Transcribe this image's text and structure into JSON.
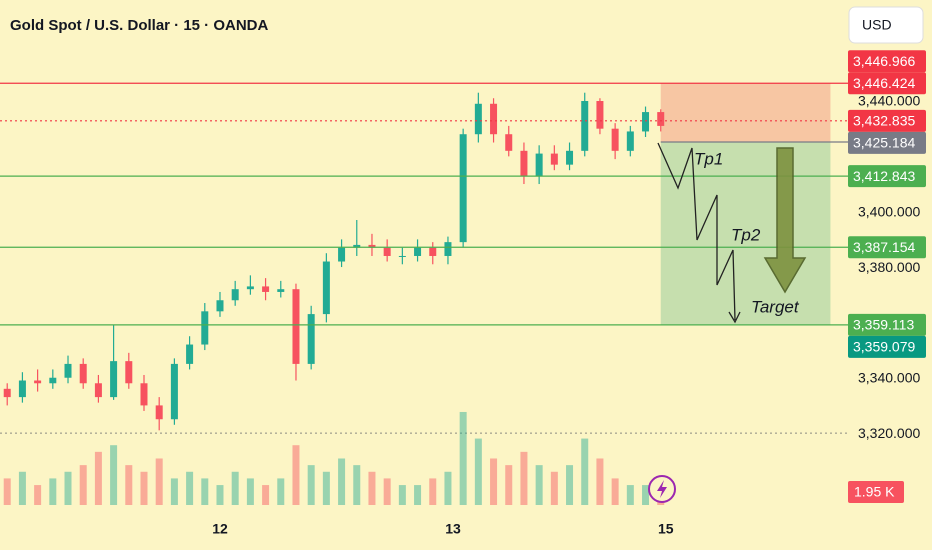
{
  "chart_data": {
    "type": "candlestick",
    "title": "Gold Spot / U.S. Dollar · 15 · OANDA",
    "currency_button": "USD",
    "x": [
      -84,
      -78,
      -72,
      -66,
      -60,
      -54,
      -48,
      -42,
      -36,
      -30,
      -24,
      -18,
      -12,
      -6,
      0,
      6,
      12,
      18,
      24,
      30,
      36,
      42,
      48,
      54,
      60,
      66,
      72,
      78,
      84,
      90,
      96,
      102,
      108,
      114,
      120,
      126,
      132,
      138,
      144,
      150,
      156,
      162,
      168,
      174
    ],
    "open": [
      3336,
      3333,
      3339,
      3338,
      3340,
      3345,
      3338,
      3333,
      3346,
      3338,
      3330,
      3325,
      3345,
      3352,
      3364,
      3368,
      3372,
      3373,
      3371,
      3372,
      3345,
      3363,
      3382,
      3387,
      3388,
      3387,
      3384,
      3384,
      3387,
      3384,
      3389,
      3428,
      3439,
      3428,
      3422,
      3413,
      3421,
      3417,
      3422,
      3440,
      3430,
      3422,
      3429,
      3436
    ],
    "high": [
      3338,
      3342,
      3343,
      3343,
      3348,
      3347,
      3341,
      3359,
      3349,
      3341,
      3333,
      3347,
      3355,
      3367,
      3371,
      3375,
      3377,
      3376,
      3375,
      3374,
      3366,
      3385,
      3390,
      3397,
      3392,
      3390,
      3387,
      3390,
      3389,
      3391,
      3430,
      3443,
      3441,
      3431,
      3425,
      3424,
      3424,
      3425,
      3443,
      3441,
      3432,
      3431,
      3438,
      3437
    ],
    "low": [
      3330,
      3331,
      3335,
      3336,
      3338,
      3336,
      3331,
      3332,
      3336,
      3328,
      3321,
      3323,
      3343,
      3350,
      3362,
      3366,
      3370,
      3368,
      3369,
      3339,
      3343,
      3360,
      3380,
      3384,
      3384,
      3382,
      3381,
      3382,
      3381,
      3381,
      3387,
      3425,
      3425,
      3420,
      3410,
      3410,
      3415,
      3415,
      3420,
      3428,
      3419,
      3420,
      3427,
      3429
    ],
    "close": [
      3333,
      3339,
      3338,
      3340,
      3345,
      3338,
      3333,
      3346,
      3338,
      3330,
      3325,
      3345,
      3352,
      3364,
      3368,
      3372,
      3373,
      3371,
      3372,
      3345,
      3363,
      3382,
      3387,
      3388,
      3387,
      3384,
      3384,
      3387,
      3384,
      3389,
      3428,
      3439,
      3428,
      3422,
      3413,
      3421,
      3417,
      3422,
      3440,
      3430,
      3422,
      3429,
      3436,
      3431
    ],
    "volume": [
      4,
      5,
      3,
      4,
      5,
      6,
      8,
      9,
      6,
      5,
      7,
      4,
      5,
      4,
      3,
      5,
      4,
      3,
      4,
      9,
      6,
      5,
      7,
      6,
      5,
      4,
      3,
      3,
      4,
      5,
      14,
      10,
      7,
      6,
      8,
      6,
      5,
      6,
      10,
      7,
      4,
      3,
      3,
      1.95
    ],
    "volume_labels": [
      null,
      null,
      null,
      null,
      null,
      null,
      null,
      null,
      null,
      null,
      null,
      null,
      null,
      null,
      null,
      null,
      null,
      null,
      null,
      null,
      null,
      null,
      null,
      null,
      null,
      null,
      null,
      null,
      null,
      null,
      null,
      null,
      null,
      null,
      null,
      null,
      null,
      null,
      null,
      null,
      null,
      null,
      null,
      "1.95 K"
    ],
    "volume_ylim": [
      0,
      15.2
    ],
    "up_color": "#22ab94",
    "down_color": "#f7525f",
    "xlim": [
      -86.85,
      246.75
    ],
    "xticks": [
      {
        "value": 0,
        "label": "12"
      },
      {
        "value": 92,
        "label": "13"
      },
      {
        "value": 176,
        "label": "15"
      }
    ],
    "ylim": [
      3290.4,
      3476.5
    ],
    "yticks": [
      {
        "value": 3440,
        "label": "3,440.000"
      },
      {
        "value": 3400,
        "label": "3,400.000"
      },
      {
        "value": 3380,
        "label": "3,380.000"
      },
      {
        "value": 3340,
        "label": "3,340.000"
      },
      {
        "value": 3320,
        "label": "3,320.000"
      }
    ],
    "reference_lines": [
      {
        "value": 3320,
        "color": "#8a8a80",
        "style": "dotted"
      }
    ],
    "price_labels": [
      {
        "value": 3446.424,
        "label": "3,446.424",
        "color": "#f23645",
        "line": "solid"
      },
      {
        "value": 3432.835,
        "label": "3,432.835",
        "color": "#f23645",
        "line": "dotted"
      },
      {
        "value": 3425.184,
        "label": "3,425.184",
        "color": "#787b86",
        "line": "box"
      },
      {
        "value": 3412.843,
        "label": "3,412.843",
        "color": "#4caf50",
        "line": "solid"
      },
      {
        "value": 3387.154,
        "label": "3,387.154",
        "color": "#4caf50",
        "line": "solid"
      },
      {
        "value": 3359.113,
        "label": "3,359.113",
        "color": "#4caf50",
        "line": "solid"
      },
      {
        "value": 3446.966,
        "label": "3,446.966",
        "color": "#f23645",
        "line": "none"
      },
      {
        "value": 3359.079,
        "label": "3,359.079",
        "color": "#089981",
        "line": "none"
      }
    ],
    "position": {
      "start": 174,
      "end": 241,
      "entry": 3425.184,
      "stop": 3446.424,
      "target": 3359.113,
      "stop_color": "#f7c6a3",
      "target_color": "#c6dfae"
    },
    "annotations": [
      "Tp1",
      "Tp2",
      "Target"
    ]
  }
}
